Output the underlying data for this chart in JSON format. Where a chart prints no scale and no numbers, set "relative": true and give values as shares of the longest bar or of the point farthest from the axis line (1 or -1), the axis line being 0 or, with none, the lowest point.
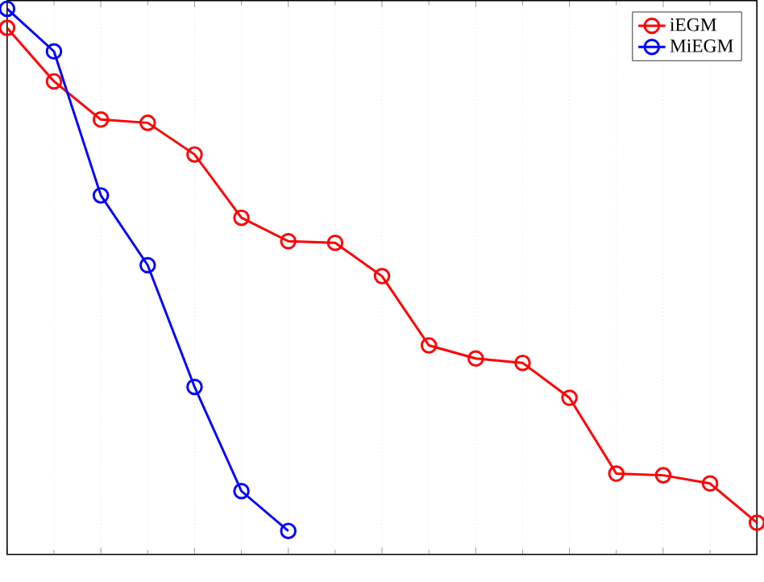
{
  "chart_data": {
    "type": "line",
    "relative": true,
    "categories": [
      null,
      null,
      null,
      null,
      null,
      null,
      null,
      null,
      null,
      null,
      null,
      null,
      null,
      null,
      null,
      null,
      null
    ],
    "series": [
      {
        "name": "iEGM",
        "color": "#ff0000",
        "values": [
          0.965,
          0.867,
          0.797,
          0.791,
          0.733,
          0.617,
          0.574,
          0.571,
          0.51,
          0.383,
          0.359,
          0.351,
          0.287,
          0.148,
          0.145,
          0.13,
          0.058
        ]
      },
      {
        "name": "MiEGM",
        "color": "#0000ff",
        "values": [
          1,
          0.922,
          0.658,
          0.53,
          0.307,
          0.116,
          0.043,
          null,
          null,
          null,
          null,
          null,
          null,
          null,
          null,
          null,
          null
        ]
      }
    ],
    "grid": "x",
    "legend": "top right",
    "marker": "circle",
    "line_style": "solid",
    "tick_labels": false
  }
}
